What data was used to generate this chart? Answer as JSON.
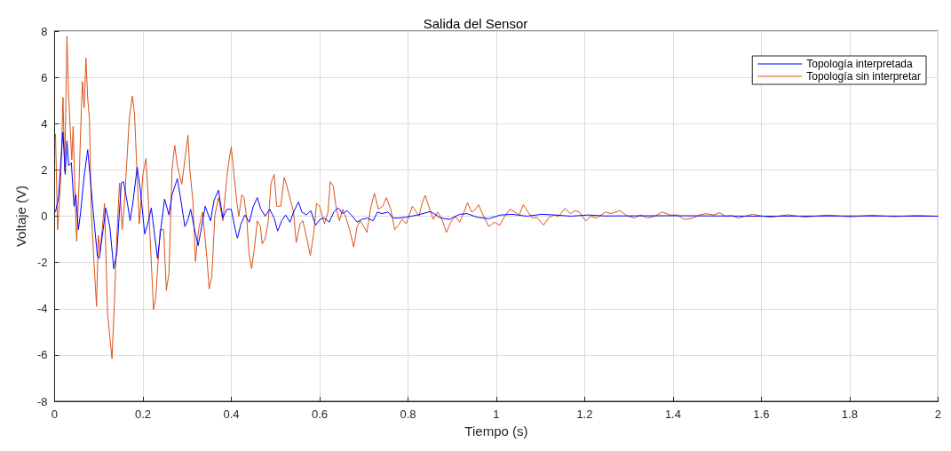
{
  "chart_data": {
    "type": "line",
    "title": "Salida del Sensor",
    "xlabel": "Tiempo (s)",
    "ylabel": "Voltaje (V)",
    "xlim": [
      0,
      2
    ],
    "xticks": [
      0,
      0.2,
      0.4,
      0.6,
      0.8,
      1,
      1.2,
      1.4,
      1.6,
      1.8,
      2
    ],
    "ylim": [
      -8,
      8
    ],
    "yticks": [
      -8,
      -6,
      -4,
      -2,
      0,
      2,
      4,
      6,
      8
    ],
    "grid": true,
    "legend": "top right",
    "marker": "none",
    "line_style": "solid",
    "series": [
      {
        "name": "Topología interpretada",
        "color": "#0000ff",
        "x": [
          0.002,
          0.009,
          0.014,
          0.019,
          0.024,
          0.028,
          0.032,
          0.038,
          0.044,
          0.048,
          0.054,
          0.059,
          0.067,
          0.075,
          0.083,
          0.09,
          0.097,
          0.101,
          0.11,
          0.116,
          0.125,
          0.134,
          0.141,
          0.151,
          0.156,
          0.165,
          0.171,
          0.178,
          0.187,
          0.194,
          0.204,
          0.211,
          0.219,
          0.225,
          0.233,
          0.242,
          0.249,
          0.259,
          0.266,
          0.278,
          0.285,
          0.295,
          0.302,
          0.308,
          0.317,
          0.325,
          0.333,
          0.341,
          0.353,
          0.361,
          0.371,
          0.381,
          0.39,
          0.4,
          0.409,
          0.414,
          0.422,
          0.431,
          0.441,
          0.45,
          0.459,
          0.467,
          0.477,
          0.487,
          0.497,
          0.505,
          0.514,
          0.523,
          0.533,
          0.541,
          0.552,
          0.56,
          0.57,
          0.58,
          0.591,
          0.601,
          0.611,
          0.622,
          0.632,
          0.642,
          0.652,
          0.662,
          0.672,
          0.685,
          0.695,
          0.708,
          0.721,
          0.731,
          0.741,
          0.755,
          0.766,
          0.778,
          0.794,
          0.821,
          0.851,
          0.874,
          0.894,
          0.917,
          0.934,
          0.957,
          0.983,
          1.009,
          1.036,
          1.069,
          1.102,
          1.135,
          1.168,
          1.208,
          1.247,
          1.4,
          1.6,
          1.8,
          2
        ],
        "values": [
          0.18,
          0.8,
          2.31,
          3.63,
          1.81,
          3.25,
          2.18,
          2.31,
          0.43,
          0.93,
          -0.58,
          0.18,
          1.74,
          2.87,
          1.18,
          -0.33,
          -1.71,
          -1.83,
          -0.58,
          0.36,
          -0.45,
          -2.27,
          -1.58,
          1.43,
          1.49,
          0.55,
          -0.2,
          0.68,
          2.12,
          1.18,
          -0.77,
          -0.33,
          0.36,
          -0.58,
          -1.83,
          -0.33,
          0.74,
          0.05,
          0.93,
          1.62,
          0.8,
          -0.45,
          -0.14,
          0.3,
          -0.58,
          -1.27,
          -0.45,
          0.43,
          -0.2,
          0.68,
          1.12,
          -0.08,
          0.3,
          0.3,
          -0.58,
          -0.95,
          -0.33,
          0.05,
          -0.26,
          0.43,
          0.8,
          0.3,
          0,
          0.3,
          -0.08,
          -0.64,
          -0.2,
          0.05,
          -0.26,
          0.18,
          0.61,
          0.18,
          0.05,
          0.24,
          -0.39,
          -0.14,
          -0.08,
          -0.26,
          0.18,
          0.36,
          0.11,
          0.24,
          0.05,
          -0.26,
          -0.14,
          -0.08,
          -0.2,
          0.18,
          0.11,
          0.18,
          -0.08,
          -0.08,
          -0.05,
          0.05,
          0.2,
          -0.08,
          -0.14,
          0.08,
          0.11,
          -0.05,
          -0.11,
          0.05,
          0.08,
          0,
          0.08,
          0.05,
          0,
          0.05,
          0.01,
          0.02,
          0,
          0.01,
          0
        ]
      },
      {
        "name": "Topología sin interpretar",
        "color": "#d95319",
        "x": [
          0.002,
          0.007,
          0.014,
          0.019,
          0.023,
          0.028,
          0.032,
          0.035,
          0.039,
          0.042,
          0.046,
          0.05,
          0.055,
          0.059,
          0.063,
          0.067,
          0.071,
          0.075,
          0.079,
          0.083,
          0.088,
          0.095,
          0.099,
          0.103,
          0.113,
          0.12,
          0.13,
          0.136,
          0.141,
          0.147,
          0.153,
          0.159,
          0.169,
          0.176,
          0.181,
          0.187,
          0.192,
          0.2,
          0.207,
          0.212,
          0.224,
          0.229,
          0.239,
          0.247,
          0.253,
          0.259,
          0.266,
          0.272,
          0.278,
          0.288,
          0.297,
          0.302,
          0.306,
          0.313,
          0.319,
          0.326,
          0.335,
          0.345,
          0.35,
          0.356,
          0.363,
          0.371,
          0.381,
          0.39,
          0.395,
          0.4,
          0.406,
          0.413,
          0.417,
          0.424,
          0.429,
          0.435,
          0.44,
          0.446,
          0.452,
          0.459,
          0.466,
          0.47,
          0.477,
          0.484,
          0.49,
          0.497,
          0.503,
          0.512,
          0.52,
          0.526,
          0.541,
          0.547,
          0.556,
          0.562,
          0.571,
          0.579,
          0.587,
          0.593,
          0.6,
          0.611,
          0.619,
          0.624,
          0.631,
          0.638,
          0.645,
          0.652,
          0.66,
          0.668,
          0.677,
          0.685,
          0.692,
          0.7,
          0.707,
          0.715,
          0.724,
          0.733,
          0.743,
          0.751,
          0.761,
          0.77,
          0.778,
          0.787,
          0.796,
          0.81,
          0.819,
          0.825,
          0.832,
          0.839,
          0.847,
          0.857,
          0.867,
          0.876,
          0.887,
          0.897,
          0.907,
          0.917,
          0.927,
          0.935,
          0.944,
          0.953,
          0.96,
          0.97,
          0.983,
          0.996,
          1.008,
          1.019,
          1.031,
          1.042,
          1.052,
          1.061,
          1.072,
          1.082,
          1.092,
          1.107,
          1.118,
          1.13,
          1.141,
          1.155,
          1.168,
          1.178,
          1.188,
          1.202,
          1.214,
          1.228,
          1.247,
          1.26,
          1.28,
          1.297,
          1.313,
          1.326,
          1.343,
          1.359,
          1.376,
          1.393,
          1.409,
          1.426,
          1.446,
          1.459,
          1.476,
          1.492,
          1.505,
          1.519,
          1.532,
          1.548,
          1.58,
          1.62,
          1.66,
          1.7,
          1.75,
          1.8,
          1.85,
          1.9,
          1.95,
          2
        ],
        "values": [
          3.56,
          -0.58,
          1.68,
          5.13,
          1.93,
          7.77,
          5.19,
          3.94,
          2.43,
          3.88,
          1.18,
          -1.08,
          1.18,
          3.69,
          5.82,
          4.69,
          6.83,
          5.07,
          4.19,
          0.3,
          -1.58,
          -3.9,
          -0.83,
          -1.58,
          0.55,
          -4.22,
          -6.16,
          -3.47,
          -0.83,
          1.43,
          -0.58,
          0.8,
          4.19,
          5.19,
          4.44,
          1.68,
          -0.33,
          1.81,
          2.5,
          0.8,
          -4.03,
          -3.53,
          -0.58,
          -0.58,
          -3.21,
          -2.46,
          2.06,
          3.06,
          2.18,
          1.37,
          2.75,
          3.5,
          2.06,
          0.68,
          -1.96,
          -0.58,
          0.18,
          -1.83,
          -3.15,
          -2.58,
          0.05,
          0.8,
          -0.2,
          1.68,
          2.43,
          3.0,
          1.81,
          0.55,
          0,
          0.93,
          0.8,
          -0.08,
          -1.58,
          -2.27,
          -1.46,
          -0.2,
          -0.45,
          -1.2,
          -0.95,
          -0.2,
          1.43,
          1.81,
          0.43,
          0.43,
          1.68,
          1.3,
          0.18,
          -1.14,
          -0.33,
          -0.2,
          -0.95,
          -1.71,
          -0.7,
          0.55,
          0.43,
          -0.33,
          0.18,
          1.49,
          1.3,
          0.3,
          -0.2,
          0.3,
          -0.08,
          -0.58,
          -1.33,
          -0.45,
          -0.2,
          -0.45,
          -0.7,
          0.3,
          0.99,
          0.3,
          0.43,
          0.8,
          0.3,
          -0.58,
          -0.39,
          -0.14,
          -0.33,
          0.43,
          0.18,
          0,
          0.55,
          0.9,
          0.43,
          -0.14,
          0.18,
          -0.08,
          -0.7,
          -0.26,
          0,
          -0.26,
          0.18,
          0.58,
          0.18,
          0.3,
          0.49,
          0.05,
          -0.45,
          -0.26,
          -0.39,
          0,
          0.3,
          0.18,
          0.05,
          0.49,
          0.18,
          -0.08,
          -0.05,
          -0.39,
          -0.08,
          0.05,
          -0.01,
          0.33,
          0.11,
          0.24,
          0.18,
          -0.2,
          -0.01,
          -0.08,
          0.18,
          0.11,
          0.24,
          0,
          -0.08,
          0.05,
          -0.08,
          0,
          0.18,
          0.05,
          0.05,
          -0.14,
          -0.08,
          0.05,
          0.11,
          0.05,
          0.15,
          0,
          0.03,
          -0.08,
          0.08,
          -0.05,
          0.06,
          -0.04,
          0.05,
          -0.03,
          0.04,
          -0.02,
          0.03,
          0
        ]
      }
    ]
  }
}
